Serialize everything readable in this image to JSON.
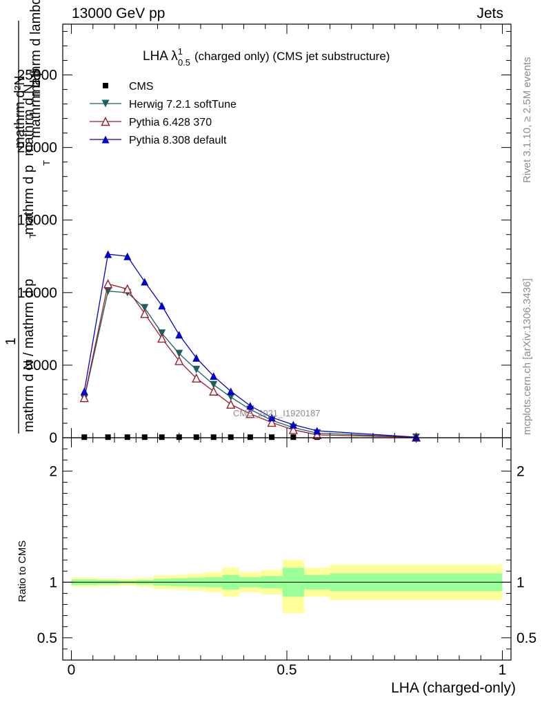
{
  "header": {
    "left": "13000 GeV pp",
    "right": "Jets"
  },
  "side_labels": {
    "rivet": "Rivet 3.1.10, ≥ 2.5M events",
    "mcplots": "mcplots.cern.ch [arXiv:1306.3436]"
  },
  "watermark": "CMS_2021_I1920187",
  "chart_data": [
    {
      "type": "line",
      "title_main": "LHA λ",
      "title_sup": "1",
      "title_sub": "0.5",
      "title_rest": "(charged only) (CMS jet substructure)",
      "ylabel_lines": [
        "mathrm d²N",
        "mathrm d p",
        "T",
        "mathrm d lambda",
        "1",
        "mathrm d N / mathrm d p",
        "T",
        "mathrm d p",
        "mathrm d N"
      ],
      "ylim": [
        0,
        28500
      ],
      "yticks": [
        0,
        5000,
        10000,
        15000,
        20000,
        25000
      ],
      "ytick_labels": [
        "0",
        "5000",
        "10000",
        "15000",
        "20000",
        "25000"
      ],
      "xlim": [
        -0.02,
        1.02
      ],
      "legend_position": "top-left",
      "series": [
        {
          "name": "CMS",
          "color": "#000000",
          "marker": "square",
          "x": [
            0.03,
            0.085,
            0.13,
            0.17,
            0.21,
            0.25,
            0.29,
            0.33,
            0.37,
            0.415,
            0.465,
            0.515,
            0.57
          ],
          "values": [
            40,
            40,
            40,
            40,
            40,
            40,
            40,
            40,
            40,
            40,
            40,
            40,
            40
          ]
        },
        {
          "name": "Herwig 7.2.1 softTune",
          "color": "#1f5f5f",
          "marker": "triangle-down-filled",
          "x": [
            0.03,
            0.085,
            0.13,
            0.17,
            0.21,
            0.25,
            0.29,
            0.33,
            0.37,
            0.415,
            0.465,
            0.515,
            0.57,
            0.8
          ],
          "values": [
            2700,
            10100,
            10000,
            8950,
            7200,
            5800,
            4700,
            3650,
            2800,
            1950,
            1200,
            700,
            320,
            30
          ]
        },
        {
          "name": "Pythia 6.428 370",
          "color": "#9b1c2c",
          "marker": "triangle-up-open",
          "x": [
            0.03,
            0.085,
            0.13,
            0.17,
            0.21,
            0.25,
            0.29,
            0.33,
            0.37,
            0.415,
            0.465,
            0.515,
            0.57,
            0.8
          ],
          "values": [
            2750,
            10600,
            10250,
            8550,
            6850,
            5300,
            4100,
            3200,
            2300,
            1650,
            1050,
            550,
            200,
            30
          ]
        },
        {
          "name": "Pythia 8.308 default",
          "color": "#0000cc",
          "marker": "triangle-up-filled",
          "x": [
            0.03,
            0.085,
            0.13,
            0.17,
            0.21,
            0.25,
            0.29,
            0.33,
            0.37,
            0.415,
            0.465,
            0.515,
            0.57,
            0.8
          ],
          "values": [
            3200,
            12650,
            12500,
            10750,
            9100,
            7100,
            5500,
            4250,
            3200,
            2200,
            1400,
            900,
            480,
            40
          ]
        }
      ]
    },
    {
      "type": "area",
      "ylabel": "Ratio to CMS",
      "xlabel": "LHA (charged-only)",
      "ylim": [
        0.3,
        2.3
      ],
      "yticks": [
        0.5,
        1,
        2
      ],
      "ytick_labels": [
        "0.5",
        "1",
        "2"
      ],
      "xticks": [
        0,
        0.5,
        1
      ],
      "xtick_labels": [
        "0",
        "0.5",
        "1"
      ],
      "xlim": [
        -0.02,
        1.02
      ],
      "reference_line": 1,
      "band_colors": {
        "outer": "#ffff99",
        "inner": "#99ff99"
      },
      "bins": [
        {
          "lo": 0.0,
          "hi": 0.06,
          "outer": [
            0.96,
            1.04
          ],
          "inner": [
            0.975,
            1.025
          ]
        },
        {
          "lo": 0.06,
          "hi": 0.11,
          "outer": [
            0.965,
            1.035
          ],
          "inner": [
            0.98,
            1.02
          ]
        },
        {
          "lo": 0.11,
          "hi": 0.15,
          "outer": [
            0.97,
            1.03
          ],
          "inner": [
            0.985,
            1.015
          ]
        },
        {
          "lo": 0.15,
          "hi": 0.19,
          "outer": [
            0.96,
            1.04
          ],
          "inner": [
            0.98,
            1.02
          ]
        },
        {
          "lo": 0.19,
          "hi": 0.23,
          "outer": [
            0.94,
            1.06
          ],
          "inner": [
            0.97,
            1.03
          ]
        },
        {
          "lo": 0.23,
          "hi": 0.27,
          "outer": [
            0.935,
            1.065
          ],
          "inner": [
            0.965,
            1.035
          ]
        },
        {
          "lo": 0.27,
          "hi": 0.31,
          "outer": [
            0.925,
            1.075
          ],
          "inner": [
            0.96,
            1.04
          ]
        },
        {
          "lo": 0.31,
          "hi": 0.35,
          "outer": [
            0.91,
            1.09
          ],
          "inner": [
            0.955,
            1.045
          ]
        },
        {
          "lo": 0.35,
          "hi": 0.39,
          "outer": [
            0.87,
            1.13
          ],
          "inner": [
            0.935,
            1.065
          ]
        },
        {
          "lo": 0.39,
          "hi": 0.44,
          "outer": [
            0.91,
            1.09
          ],
          "inner": [
            0.955,
            1.045
          ]
        },
        {
          "lo": 0.44,
          "hi": 0.49,
          "outer": [
            0.89,
            1.11
          ],
          "inner": [
            0.945,
            1.055
          ]
        },
        {
          "lo": 0.49,
          "hi": 0.54,
          "outer": [
            0.72,
            1.2
          ],
          "inner": [
            0.87,
            1.13
          ]
        },
        {
          "lo": 0.54,
          "hi": 0.6,
          "outer": [
            0.87,
            1.13
          ],
          "inner": [
            0.935,
            1.065
          ]
        },
        {
          "lo": 0.6,
          "hi": 1.0,
          "outer": [
            0.84,
            1.16
          ],
          "inner": [
            0.92,
            1.08
          ]
        }
      ]
    }
  ]
}
